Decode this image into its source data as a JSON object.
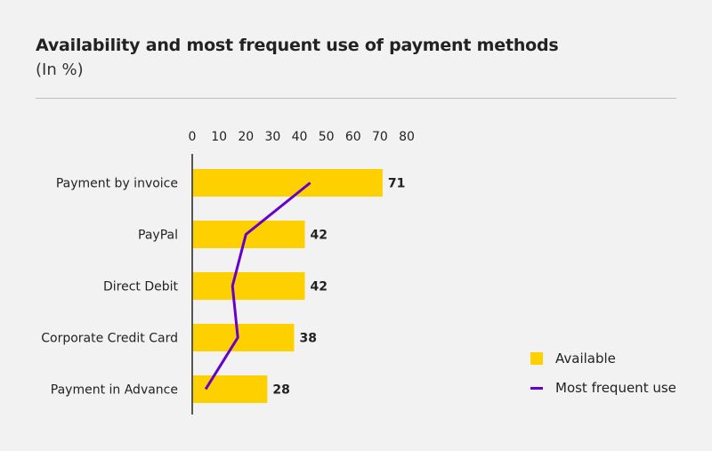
{
  "title": "Availability and most frequent use of payment methods",
  "subtitle": "(In %)",
  "colors": {
    "available": "#ffd000",
    "most_frequent_use": "#6600cc"
  },
  "chart_data": {
    "type": "bar",
    "orientation": "horizontal",
    "categories": [
      "Payment by invoice",
      "PayPal",
      "Direct Debit",
      "Corporate Credit Card",
      "Payment in Advance"
    ],
    "series": [
      {
        "name": "Available",
        "type": "bar",
        "values": [
          71,
          42,
          42,
          38,
          28
        ]
      },
      {
        "name": "Most frequent use",
        "type": "line",
        "values": [
          44,
          20,
          15,
          17,
          5
        ]
      }
    ],
    "xlim": [
      0,
      80
    ],
    "xticks": [
      "0",
      "10",
      "20",
      "30",
      "40",
      "50",
      "60",
      "70",
      "80"
    ],
    "grid": false,
    "legend_position": "bottom-right"
  },
  "legend": [
    {
      "label": "Available"
    },
    {
      "label": "Most frequent use"
    }
  ]
}
